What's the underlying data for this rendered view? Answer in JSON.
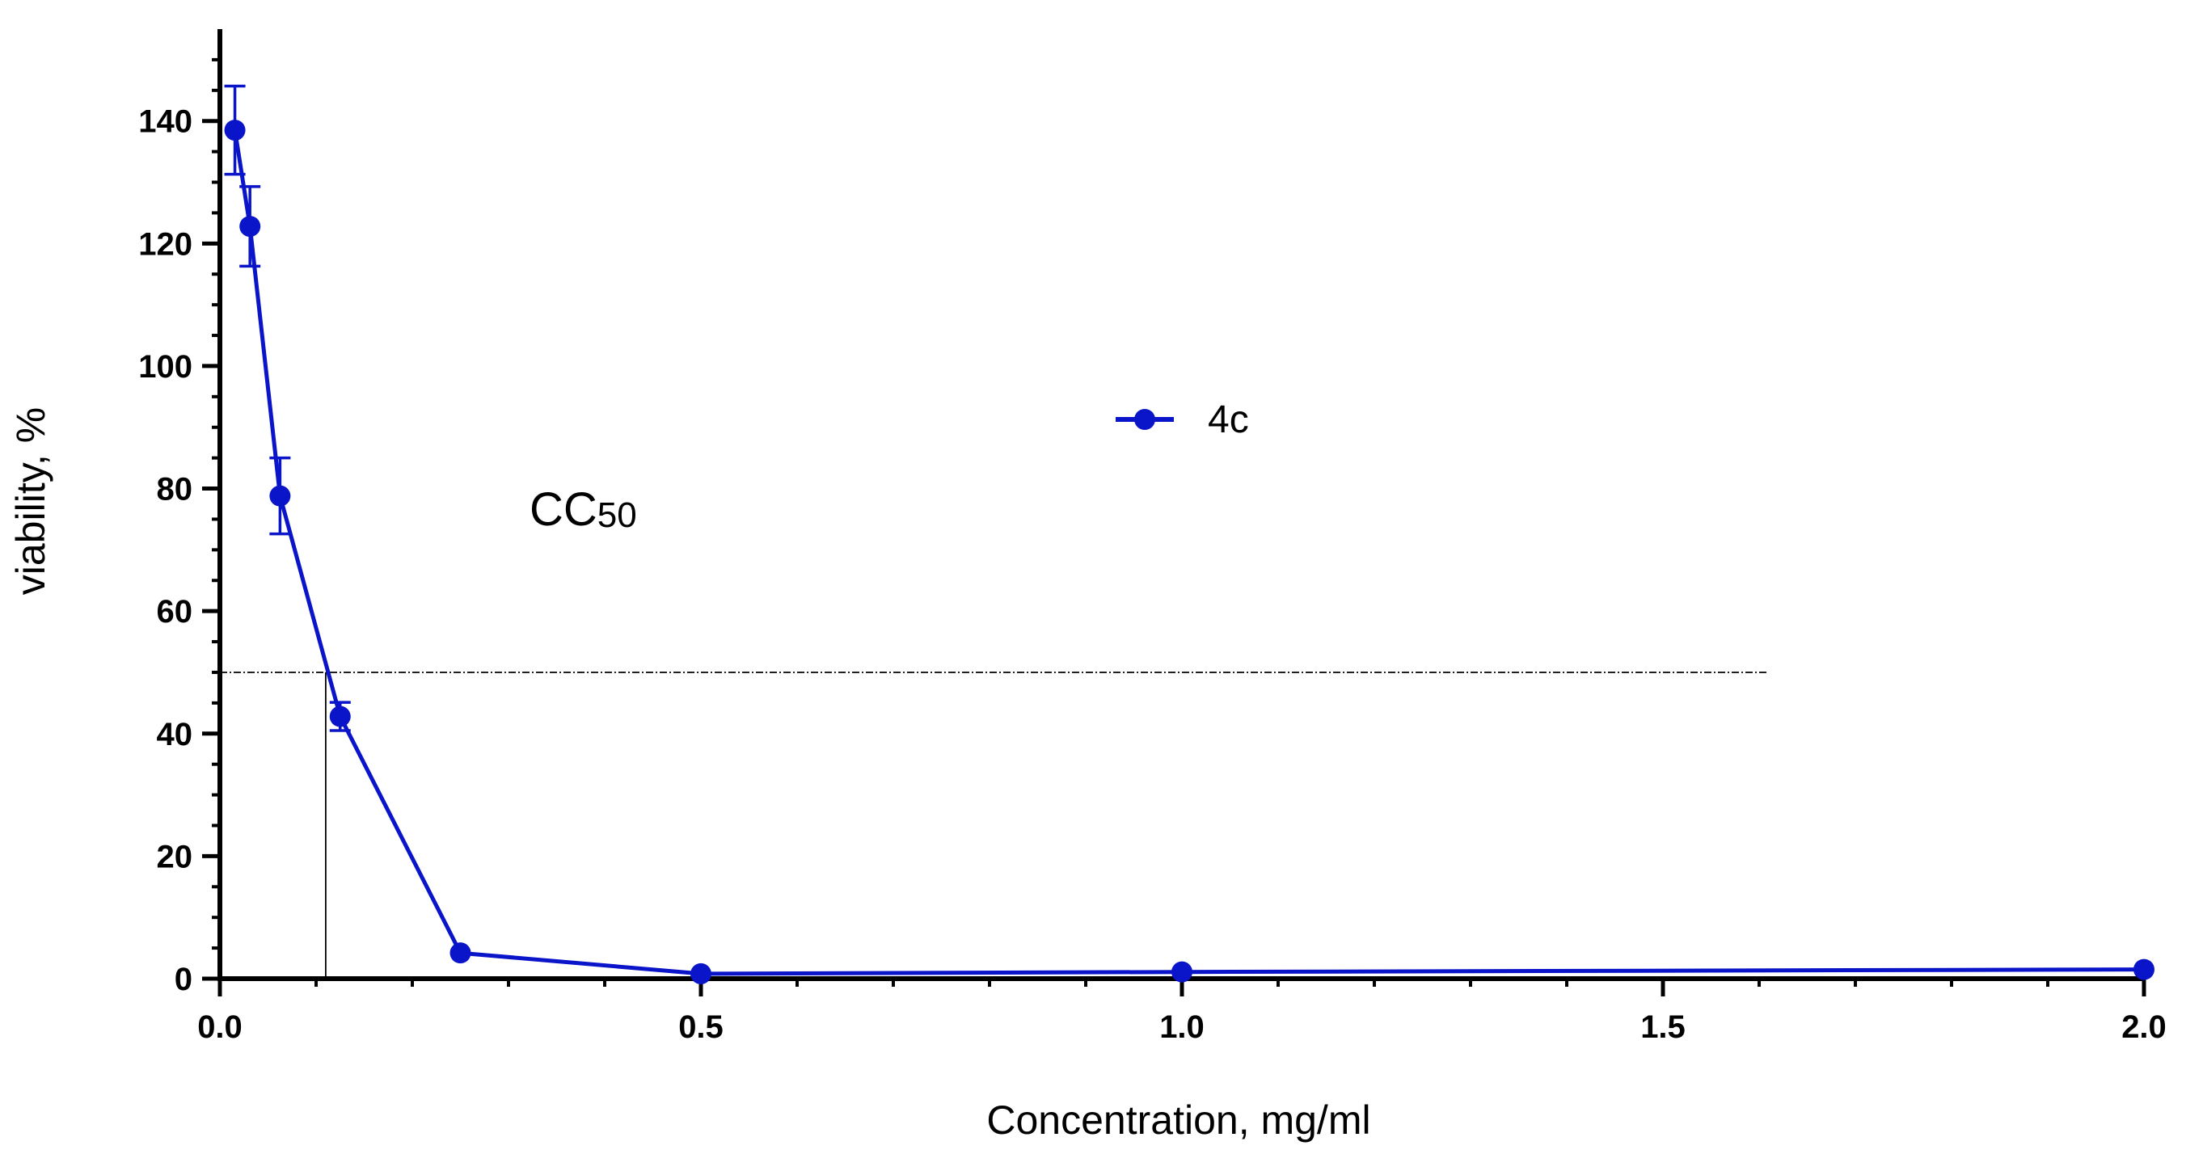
{
  "chart_data": {
    "type": "line",
    "xlabel": "Concentration, mg/ml",
    "ylabel": "viability, %",
    "xlim": [
      0,
      2.0
    ],
    "ylim": [
      0,
      155
    ],
    "x_ticks": [
      0.0,
      0.5,
      1.0,
      1.5,
      2.0
    ],
    "x_tick_labels": [
      "0.0",
      "0.5",
      "1.0",
      "1.5",
      "2.0"
    ],
    "y_ticks": [
      0,
      20,
      40,
      60,
      80,
      100,
      120,
      140
    ],
    "y_tick_labels": [
      "0",
      "20",
      "40",
      "60",
      "80",
      "100",
      "120",
      "140"
    ],
    "grid": false,
    "legend_position": "center",
    "series": [
      {
        "name": "4c",
        "color": "#0a14c8",
        "x": [
          0.0156,
          0.03125,
          0.0625,
          0.125,
          0.25,
          0.5,
          1.0,
          2.0
        ],
        "y": [
          138.5,
          122.8,
          78.8,
          42.8,
          4.2,
          0.8,
          1.1,
          1.5
        ],
        "error": [
          7.2,
          6.5,
          6.2,
          2.3,
          0,
          0,
          0,
          0
        ]
      }
    ],
    "reference_lines": {
      "horizontal_y": 50,
      "horizontal_x_end": 1.61,
      "vertical_x": 0.11
    },
    "annotation": {
      "main": "CC",
      "subscript": "50"
    }
  }
}
